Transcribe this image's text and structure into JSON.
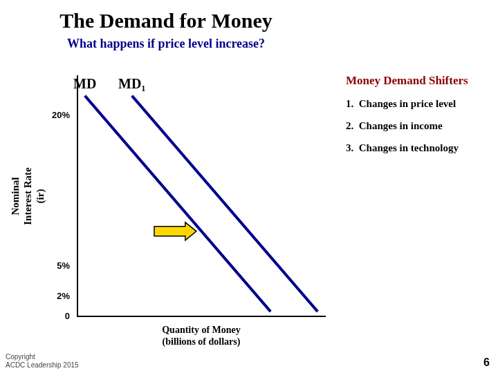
{
  "chart_data": {
    "type": "line",
    "title": "The Demand for Money",
    "title_color": "#000000",
    "subtitle": "What happens if price level increase?",
    "subtitle_color": "#00008B",
    "background_color": "#ffffff",
    "x_label": "Quantity of Money\n(billions of dollars)",
    "y_label": "Nominal\nInterest Rate\n(ir)",
    "series": [
      {
        "name": "MD",
        "color": "#00008B",
        "x": [
          0.3,
          7.8
        ],
        "values": [
          22.0,
          0.5
        ]
      },
      {
        "name": "MD₁",
        "color": "#00008B",
        "x": [
          2.2,
          9.7
        ],
        "values": [
          22.0,
          0.5
        ]
      }
    ],
    "xlim": [
      0,
      10
    ],
    "ylim": [
      0,
      24
    ],
    "yticks": [
      0,
      {
        "value": 2,
        "label": "2%"
      },
      {
        "value": 5,
        "label": "5%"
      },
      {
        "value": 20,
        "label": "20%"
      }
    ],
    "tick_labels": "y",
    "grid": false,
    "arrow": {
      "x": 3.1,
      "y": 8.5,
      "dx": 1.7,
      "dy": 0.0,
      "color": "#FFD700"
    },
    "notes_title": "Money Demand Shifters",
    "notes_title_color": "#8B0000",
    "notes": [
      "1.  Changes in price level",
      "2.  Changes in income",
      "3.  Changes in technology"
    ],
    "notes_color": "#000000",
    "footer": "Copyright\nACDC Leadership 2015",
    "slide_number": "6"
  }
}
